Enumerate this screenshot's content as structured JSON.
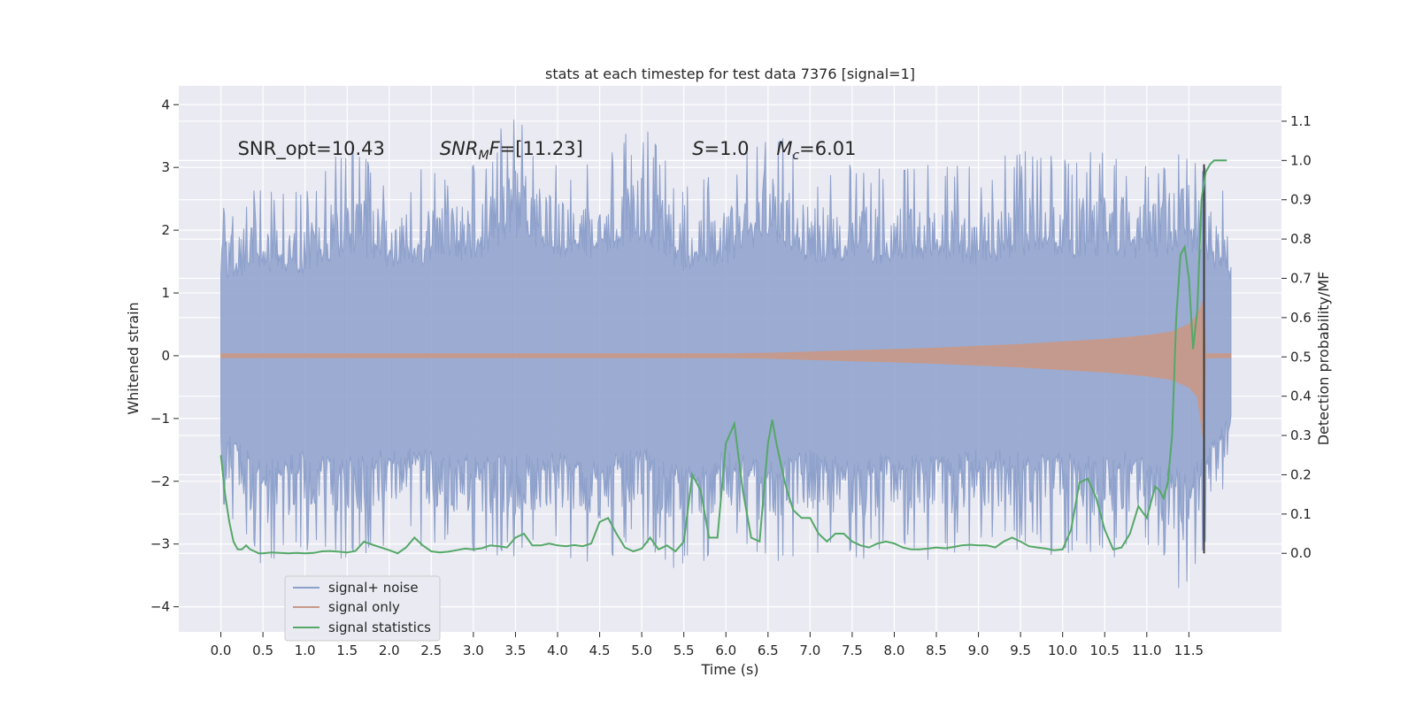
{
  "chart_data": {
    "type": "line",
    "title": "stats at each timestep for test data 7376 [signal=1]",
    "xlabel": "Time (s)",
    "ylabel": "Whitened strain",
    "y2label": "Detection probability/MF",
    "xlim": [
      -0.5,
      12.6
    ],
    "ylim": [
      -4.4,
      4.3
    ],
    "y2lim": [
      -0.2,
      1.19
    ],
    "x_ticks": [
      "0.0",
      "0.5",
      "1.0",
      "1.5",
      "2.0",
      "2.5",
      "3.0",
      "3.5",
      "4.0",
      "4.5",
      "5.0",
      "5.5",
      "6.0",
      "6.5",
      "7.0",
      "7.5",
      "8.0",
      "8.5",
      "9.0",
      "9.5",
      "10.0",
      "10.5",
      "11.0",
      "11.5"
    ],
    "y_ticks": [
      "−4",
      "−3",
      "−2",
      "−1",
      "0",
      "1",
      "2",
      "3",
      "4"
    ],
    "y2_ticks": [
      "0.0",
      "0.1",
      "0.2",
      "0.3",
      "0.4",
      "0.5",
      "0.6",
      "0.7",
      "0.8",
      "0.9",
      "1.0",
      "1.1"
    ],
    "grid": true,
    "legend_position": "lower-left",
    "annotations": [
      {
        "text": "SNR_opt=10.43",
        "x": 0.2,
        "y": 3.2
      },
      {
        "text": "SNR",
        "sub": "M",
        "rest": "F=[11.23]",
        "italic": true,
        "x": 2.6,
        "y": 3.2
      },
      {
        "text": "S",
        "rest": "=1.0",
        "italic": true,
        "x": 5.6,
        "y": 3.2
      },
      {
        "text": "M",
        "sub": "c",
        "rest": "=6.01",
        "italic": true,
        "x": 6.6,
        "y": 3.2
      }
    ],
    "vertical_line": {
      "x": 11.68,
      "y_from": -3.2,
      "y_to": 3.05
    },
    "series": [
      {
        "name": "signal+ noise",
        "color": "#8da0cb",
        "axis": "left",
        "envelope": {
          "x": [
            0.0,
            0.5,
            1.0,
            1.5,
            2.0,
            2.5,
            3.0,
            3.5,
            4.0,
            4.5,
            5.0,
            5.5,
            6.0,
            6.5,
            7.0,
            7.5,
            8.0,
            8.5,
            9.0,
            9.5,
            10.0,
            10.5,
            11.0,
            11.5,
            12.0
          ],
          "upper": [
            2.4,
            2.8,
            2.6,
            3.4,
            2.9,
            3.0,
            3.1,
            3.9,
            3.2,
            3.1,
            3.8,
            2.7,
            3.0,
            3.9,
            3.0,
            3.1,
            3.0,
            3.2,
            3.0,
            3.3,
            3.2,
            3.3,
            3.2,
            3.5,
            2.5
          ],
          "lower": [
            -2.4,
            -3.5,
            -3.1,
            -3.3,
            -3.0,
            -3.1,
            -3.3,
            -3.3,
            -3.2,
            -3.4,
            -3.0,
            -3.6,
            -3.1,
            -3.5,
            -3.1,
            -3.4,
            -3.2,
            -3.3,
            -3.1,
            -3.1,
            -3.2,
            -3.3,
            -3.1,
            -3.9,
            -1.9
          ]
        }
      },
      {
        "name": "signal only",
        "color": "#c7998a",
        "axis": "left",
        "envelope": {
          "x": [
            0.0,
            1.0,
            2.0,
            3.0,
            4.0,
            5.0,
            6.0,
            6.5,
            7.0,
            7.5,
            8.0,
            8.5,
            9.0,
            9.5,
            10.0,
            10.5,
            11.0,
            11.3,
            11.5,
            11.6,
            11.68,
            11.7,
            12.0
          ],
          "upper": [
            0.03,
            0.03,
            0.03,
            0.03,
            0.03,
            0.03,
            0.03,
            0.04,
            0.06,
            0.08,
            0.1,
            0.12,
            0.15,
            0.18,
            0.22,
            0.26,
            0.32,
            0.38,
            0.5,
            0.65,
            0.9,
            0.03,
            0.03
          ],
          "lower": [
            -0.03,
            -0.03,
            -0.03,
            -0.03,
            -0.03,
            -0.03,
            -0.03,
            -0.04,
            -0.06,
            -0.08,
            -0.1,
            -0.12,
            -0.15,
            -0.18,
            -0.22,
            -0.26,
            -0.32,
            -0.38,
            -0.5,
            -0.65,
            -1.4,
            -0.03,
            -0.03
          ]
        }
      },
      {
        "name": "signal statistics",
        "color": "#55a868",
        "axis": "right",
        "x": [
          0.0,
          0.05,
          0.1,
          0.15,
          0.2,
          0.25,
          0.3,
          0.35,
          0.4,
          0.45,
          0.5,
          0.6,
          0.7,
          0.8,
          0.9,
          1.0,
          1.1,
          1.2,
          1.3,
          1.4,
          1.5,
          1.6,
          1.7,
          1.8,
          1.9,
          2.0,
          2.1,
          2.2,
          2.3,
          2.4,
          2.5,
          2.6,
          2.7,
          2.8,
          2.9,
          3.0,
          3.1,
          3.2,
          3.3,
          3.4,
          3.5,
          3.6,
          3.7,
          3.8,
          3.9,
          4.0,
          4.1,
          4.2,
          4.3,
          4.4,
          4.5,
          4.6,
          4.7,
          4.8,
          4.9,
          5.0,
          5.1,
          5.2,
          5.3,
          5.4,
          5.5,
          5.6,
          5.7,
          5.8,
          5.9,
          6.0,
          6.1,
          6.2,
          6.3,
          6.4,
          6.5,
          6.55,
          6.6,
          6.7,
          6.8,
          6.9,
          7.0,
          7.1,
          7.2,
          7.3,
          7.4,
          7.5,
          7.6,
          7.7,
          7.8,
          7.9,
          8.0,
          8.1,
          8.2,
          8.3,
          8.4,
          8.5,
          8.6,
          8.7,
          8.8,
          8.9,
          9.0,
          9.1,
          9.2,
          9.3,
          9.4,
          9.5,
          9.6,
          9.7,
          9.8,
          9.9,
          10.0,
          10.1,
          10.2,
          10.3,
          10.4,
          10.5,
          10.6,
          10.7,
          10.8,
          10.9,
          11.0,
          11.1,
          11.15,
          11.2,
          11.25,
          11.3,
          11.35,
          11.4,
          11.45,
          11.5,
          11.55,
          11.6,
          11.65,
          11.7,
          11.75,
          11.8,
          11.85,
          11.9,
          11.95
        ],
        "y": [
          0.25,
          0.15,
          0.08,
          0.03,
          0.01,
          0.01,
          0.02,
          0.01,
          0.005,
          0.0,
          0.0,
          0.002,
          0.001,
          0.0,
          0.001,
          0.0,
          0.001,
          0.005,
          0.006,
          0.004,
          0.002,
          0.006,
          0.03,
          0.022,
          0.015,
          0.008,
          0.0,
          0.015,
          0.04,
          0.02,
          0.005,
          0.002,
          0.004,
          0.008,
          0.012,
          0.01,
          0.013,
          0.02,
          0.018,
          0.015,
          0.04,
          0.05,
          0.02,
          0.02,
          0.025,
          0.02,
          0.018,
          0.021,
          0.018,
          0.025,
          0.08,
          0.09,
          0.05,
          0.015,
          0.005,
          0.012,
          0.04,
          0.01,
          0.02,
          0.005,
          0.03,
          0.2,
          0.16,
          0.04,
          0.04,
          0.28,
          0.33,
          0.16,
          0.04,
          0.03,
          0.28,
          0.34,
          0.28,
          0.18,
          0.11,
          0.09,
          0.09,
          0.05,
          0.03,
          0.05,
          0.05,
          0.03,
          0.02,
          0.015,
          0.025,
          0.03,
          0.025,
          0.015,
          0.01,
          0.01,
          0.012,
          0.015,
          0.013,
          0.016,
          0.02,
          0.022,
          0.02,
          0.02,
          0.015,
          0.03,
          0.04,
          0.03,
          0.018,
          0.015,
          0.012,
          0.008,
          0.01,
          0.06,
          0.18,
          0.19,
          0.14,
          0.06,
          0.01,
          0.015,
          0.05,
          0.12,
          0.09,
          0.17,
          0.16,
          0.14,
          0.18,
          0.3,
          0.6,
          0.76,
          0.78,
          0.7,
          0.52,
          0.62,
          0.9,
          0.97,
          0.99,
          1.0,
          1.0,
          1.0,
          1.0
        ]
      }
    ]
  }
}
